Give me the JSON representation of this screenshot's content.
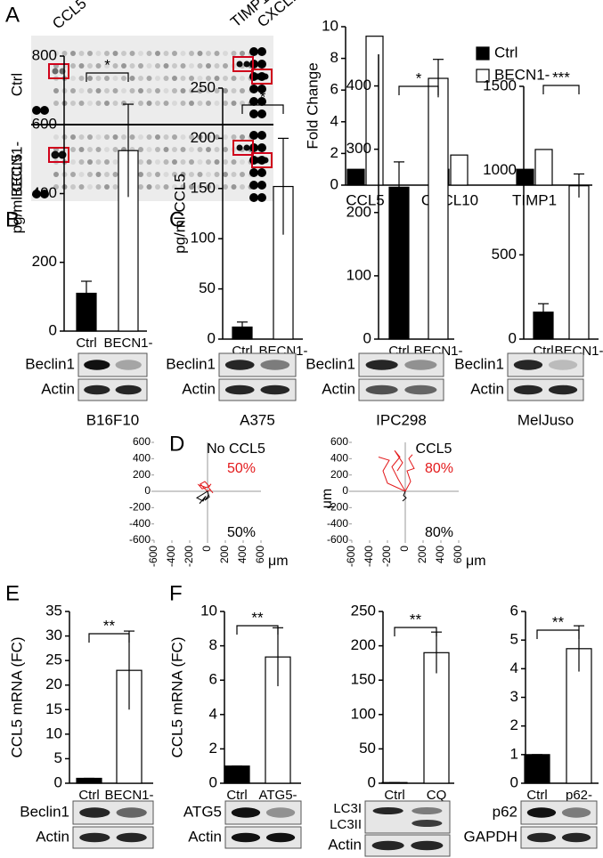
{
  "panel_labels": [
    "A",
    "B",
    "C",
    "D",
    "E",
    "F"
  ],
  "array_blot": {
    "spot_labels": [
      "CCL5",
      "TIMP1",
      "CXCL10"
    ],
    "row_labels": [
      "Ctrl",
      "BECN1-"
    ]
  },
  "chart_data": [
    {
      "type": "grouped_bar",
      "categories": [
        "CCL5",
        "CXCL10",
        "TIMP1"
      ],
      "series": [
        {
          "name": "Ctrl",
          "color": "#000000",
          "values": [
            1,
            1,
            1
          ]
        },
        {
          "name": "BECN1-",
          "color": "#ffffff",
          "values": [
            9.4,
            1.9,
            2.25
          ]
        }
      ],
      "ylabel": "Fold Change",
      "ylim": [
        0,
        10
      ],
      "yticks": [
        0,
        2,
        4,
        6,
        8,
        10
      ],
      "legend": "upper right"
    },
    {
      "type": "bar",
      "categories": [
        "Ctrl",
        "BECN1-"
      ],
      "values": [
        110,
        525
      ],
      "errors": [
        35,
        135
      ],
      "colors": [
        "#000000",
        "#ffffff"
      ],
      "significance": "*",
      "ylabel": "pg/ml CCL5",
      "ylim": [
        0,
        800
      ],
      "yticks": [
        0,
        200,
        400,
        600,
        800
      ]
    },
    {
      "type": "bar",
      "categories": [
        "Ctrl",
        "BECN1-"
      ],
      "values": [
        12,
        152
      ],
      "errors": [
        5,
        48
      ],
      "colors": [
        "#000000",
        "#ffffff"
      ],
      "significance": "*",
      "ylabel": "pg/ml CCL5",
      "ylim": [
        0,
        250
      ],
      "yticks": [
        0,
        50,
        100,
        150,
        200,
        250
      ]
    },
    {
      "type": "bar",
      "categories": [
        "Ctrl",
        "BECN1-"
      ],
      "values": [
        240,
        412
      ],
      "errors": [
        40,
        30
      ],
      "colors": [
        "#000000",
        "#ffffff"
      ],
      "significance": "*",
      "ylim": [
        0,
        450
      ],
      "yticks": [
        0,
        100,
        200,
        300,
        400
      ]
    },
    {
      "type": "bar",
      "categories": [
        "Ctrl",
        "BECN1-"
      ],
      "values": [
        160,
        910
      ],
      "errors": [
        50,
        70
      ],
      "colors": [
        "#000000",
        "#ffffff"
      ],
      "significance": "***",
      "ylim": [
        0,
        1500
      ],
      "yticks": [
        0,
        500,
        1000,
        1500
      ]
    },
    {
      "type": "line",
      "label": "No CCL5",
      "upper_fraction": "50%",
      "lower_fraction": "50%",
      "upper_color": "#e31a1c",
      "xlabel": "μm",
      "xlim": [
        -600,
        600
      ],
      "xticks": [
        -600,
        -400,
        -200,
        0,
        200,
        400,
        600
      ],
      "ylim": [
        -600,
        600
      ],
      "yticks": [
        -600,
        -400,
        -200,
        0,
        200,
        400,
        600
      ],
      "series": [
        {
          "color": "#e31a1c",
          "x": [
            0,
            -40,
            -80,
            -30,
            20,
            -60,
            -100,
            -20
          ],
          "y": [
            0,
            40,
            90,
            120,
            60,
            30,
            80,
            50
          ]
        },
        {
          "color": "#e31a1c",
          "x": [
            0,
            30,
            60,
            10,
            40
          ],
          "y": [
            0,
            20,
            -20,
            50,
            90
          ]
        },
        {
          "color": "#000000",
          "x": [
            0,
            -60,
            -120,
            -50,
            -20,
            -90
          ],
          "y": [
            0,
            -40,
            -80,
            -120,
            -60,
            -150
          ]
        },
        {
          "color": "#000000",
          "x": [
            0,
            20,
            -30,
            10
          ],
          "y": [
            0,
            -70,
            -110,
            -50
          ]
        }
      ]
    },
    {
      "type": "line",
      "label": "CCL5",
      "upper_fraction": "80%",
      "lower_fraction": "80%",
      "upper_color": "#e31a1c",
      "xlabel": "μm",
      "ylabel": "μm",
      "xlim": [
        -600,
        600
      ],
      "xticks": [
        -600,
        -400,
        -200,
        0,
        200,
        400,
        600
      ],
      "ylim": [
        -600,
        600
      ],
      "yticks": [
        -600,
        -400,
        -200,
        0,
        200,
        400,
        600
      ],
      "series": [
        {
          "color": "#e31a1c",
          "x": [
            0,
            -80,
            -150,
            -60,
            -120,
            -30,
            -90
          ],
          "y": [
            0,
            150,
            300,
            420,
            500,
            350,
            250
          ]
        },
        {
          "color": "#e31a1c",
          "x": [
            0,
            60,
            20,
            100,
            40,
            80
          ],
          "y": [
            0,
            120,
            250,
            280,
            400,
            450
          ]
        },
        {
          "color": "#e31a1c",
          "x": [
            0,
            -200,
            -250,
            -180,
            -300
          ],
          "y": [
            0,
            100,
            250,
            380,
            420
          ]
        },
        {
          "color": "#000000",
          "x": [
            0,
            -20,
            10,
            -30
          ],
          "y": [
            0,
            -50,
            -80,
            -120
          ]
        }
      ]
    },
    {
      "type": "bar",
      "categories": [
        "Ctrl",
        "BECN1-"
      ],
      "values": [
        1,
        23
      ],
      "errors": [
        0,
        8
      ],
      "colors": [
        "#000000",
        "#ffffff"
      ],
      "significance": "**",
      "ylabel": "CCL5 mRNA (FC)",
      "ylim": [
        0,
        35
      ],
      "yticks": [
        0,
        5,
        10,
        15,
        20,
        25,
        30,
        35
      ]
    },
    {
      "type": "bar",
      "categories": [
        "Ctrl",
        "ATG5-"
      ],
      "values": [
        1,
        7.35
      ],
      "errors": [
        0,
        1.7
      ],
      "colors": [
        "#000000",
        "#ffffff"
      ],
      "significance": "**",
      "ylabel": "CCL5 mRNA (FC)",
      "ylim": [
        0,
        10
      ],
      "yticks": [
        0,
        2,
        4,
        6,
        8,
        10
      ]
    },
    {
      "type": "bar",
      "categories": [
        "Ctrl",
        "CQ"
      ],
      "values": [
        1,
        190
      ],
      "errors": [
        0,
        30
      ],
      "colors": [
        "#000000",
        "#ffffff"
      ],
      "significance": "**",
      "ylim": [
        0,
        250
      ],
      "yticks": [
        0,
        50,
        100,
        150,
        200,
        250
      ]
    },
    {
      "type": "bar",
      "categories": [
        "Ctrl",
        "p62-"
      ],
      "values": [
        1,
        4.7
      ],
      "errors": [
        0,
        0.8
      ],
      "colors": [
        "#000000",
        "#ffffff"
      ],
      "significance": "**",
      "ylim": [
        0,
        6
      ],
      "yticks": [
        0,
        1,
        2,
        3,
        4,
        5,
        6
      ]
    }
  ],
  "western_blots": [
    {
      "rows": [
        "Beclin1",
        "Actin"
      ],
      "caption": "B16F10"
    },
    {
      "rows": [
        "Beclin1",
        "Actin"
      ],
      "caption": "A375"
    },
    {
      "rows": [
        "Beclin1",
        "Actin"
      ],
      "caption": "IPC298"
    },
    {
      "rows": [
        "Beclin1",
        "Actin"
      ],
      "caption": "MelJuso"
    },
    {
      "rows": [
        "Beclin1",
        "Actin"
      ]
    },
    {
      "rows": [
        "ATG5",
        "Actin"
      ]
    },
    {
      "rows": [
        "LC3I",
        "LC3II",
        "Actin"
      ]
    },
    {
      "rows": [
        "p62",
        "GAPDH"
      ]
    }
  ]
}
